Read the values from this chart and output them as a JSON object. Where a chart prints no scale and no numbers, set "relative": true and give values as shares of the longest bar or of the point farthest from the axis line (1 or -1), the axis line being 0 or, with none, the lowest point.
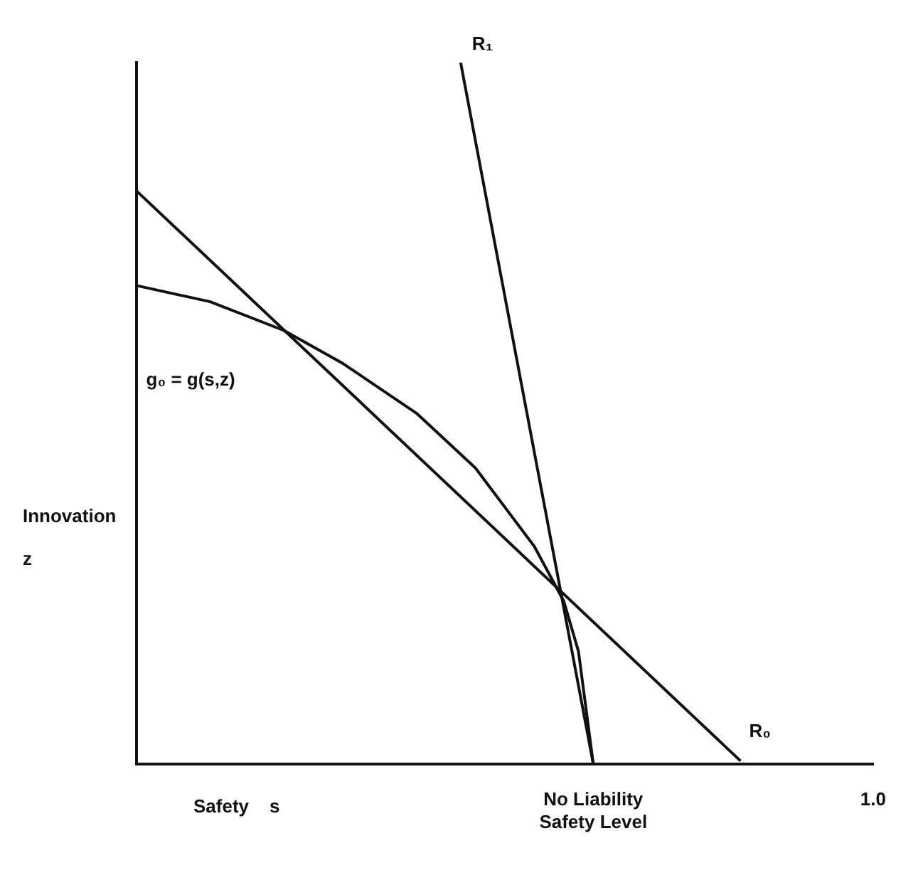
{
  "chart_data": {
    "type": "line",
    "relative": true,
    "xlabel": "Safety    s",
    "ylabel": "Innovation\nz",
    "categories": [
      null,
      null,
      null,
      null,
      null,
      null,
      null,
      null,
      null,
      null,
      null,
      null,
      null,
      null,
      null,
      null,
      null,
      null,
      null,
      null,
      null,
      null,
      null,
      null,
      null,
      null,
      null,
      null,
      null,
      null,
      null,
      "No Liability\nSafety Level",
      null,
      null,
      null,
      null,
      null,
      null,
      null,
      null,
      null,
      null,
      null,
      null,
      null,
      null,
      null,
      null,
      null,
      null,
      "1.0"
    ],
    "grid": false,
    "legend": false,
    "marker": "none",
    "line_style": "solid",
    "series": [
      {
        "name": "R₁",
        "color": "#111111",
        "values": [
          null,
          null,
          null,
          null,
          null,
          null,
          null,
          null,
          null,
          null,
          null,
          null,
          null,
          null,
          null,
          null,
          null,
          null,
          null,
          null,
          null,
          null,
          1,
          null,
          null,
          null,
          null,
          null,
          null,
          null,
          null,
          0,
          null,
          null,
          null,
          null,
          null,
          null,
          null,
          null,
          null,
          null,
          null,
          null,
          null,
          null,
          null,
          null,
          null,
          null,
          null
        ]
      },
      {
        "name": "R₀",
        "color": "#111111",
        "values": [
          0.817,
          null,
          null,
          null,
          null,
          null,
          null,
          null,
          null,
          null,
          null,
          null,
          null,
          null,
          null,
          null,
          null,
          null,
          null,
          null,
          null,
          null,
          null,
          null,
          null,
          null,
          null,
          null,
          null,
          null,
          null,
          null,
          null,
          null,
          null,
          null,
          null,
          null,
          null,
          null,
          null,
          0.004,
          null,
          null,
          null,
          null,
          null,
          null,
          null,
          null,
          null
        ]
      },
      {
        "name": "g₀ = g(s,z)",
        "color": "#111111",
        "values": [
          0.682,
          null,
          null,
          null,
          null,
          0.659,
          null,
          null,
          null,
          null,
          0.618,
          null,
          null,
          null,
          0.571,
          null,
          null,
          null,
          null,
          0.5,
          null,
          null,
          null,
          0.422,
          null,
          null,
          null,
          0.31,
          null,
          0.232,
          0.16,
          0,
          null,
          null,
          null,
          null,
          null,
          null,
          null,
          null,
          null,
          null,
          null,
          null,
          null,
          null,
          null,
          null,
          null,
          null,
          null
        ]
      }
    ]
  }
}
